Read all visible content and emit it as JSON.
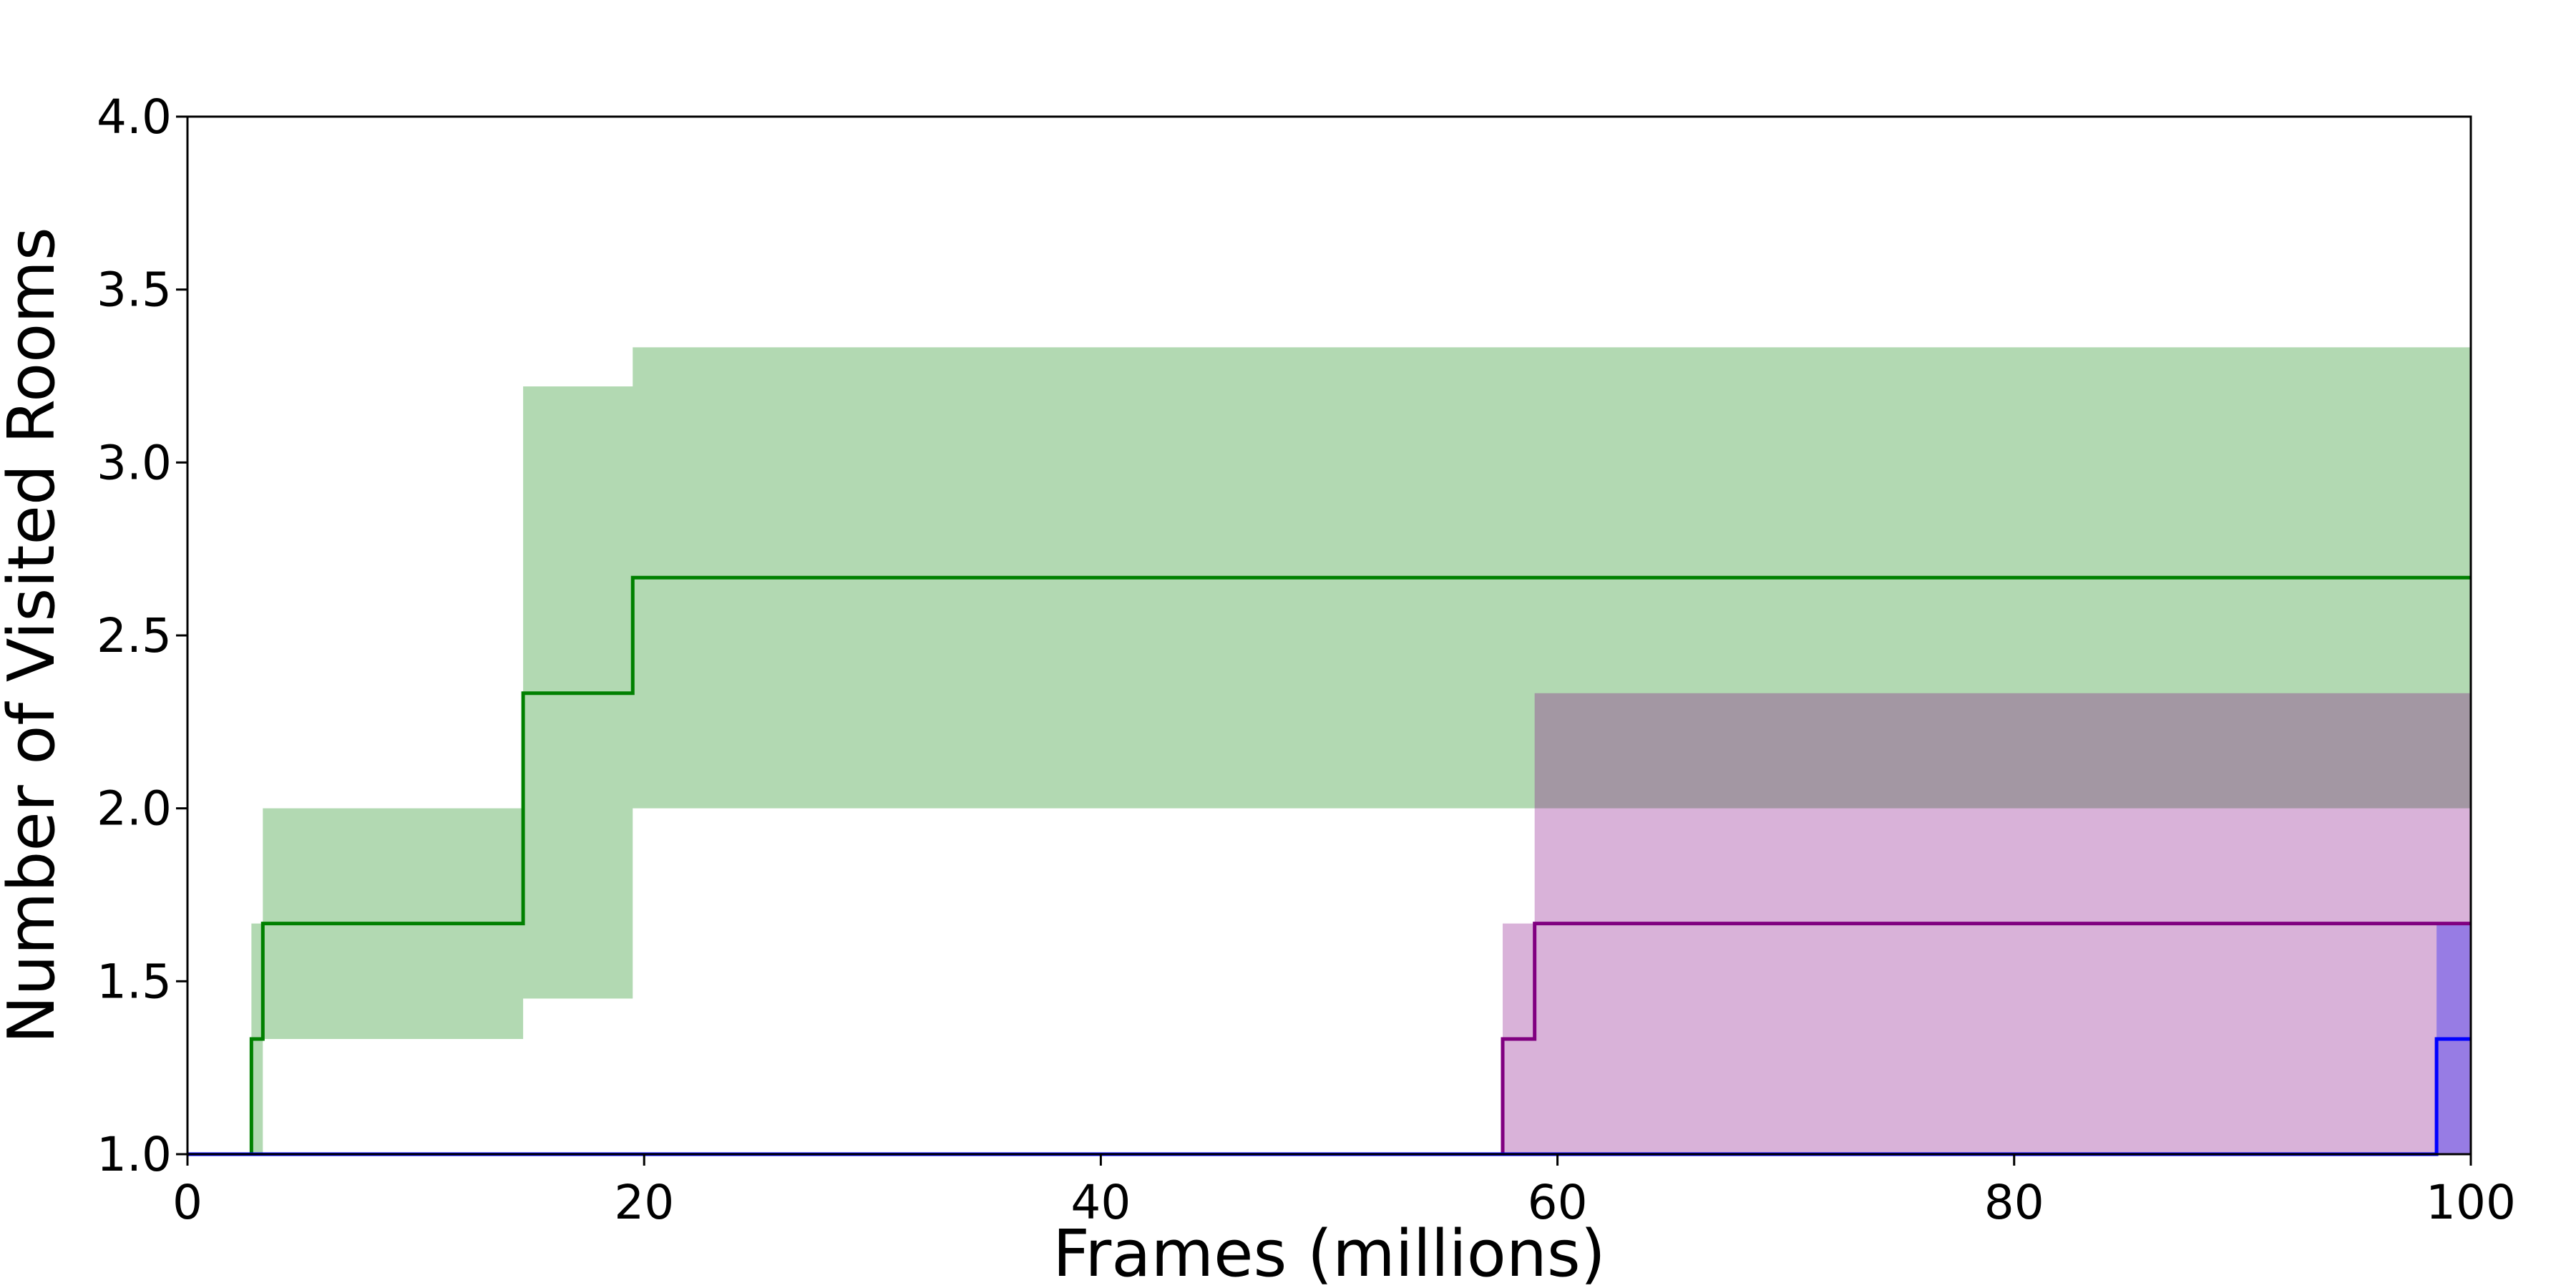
{
  "chart_data": {
    "type": "line",
    "title": "",
    "xlabel": "Frames (millions)",
    "ylabel": "Number of Visited Rooms",
    "xlim": [
      0,
      100
    ],
    "ylim": [
      1.0,
      4.0
    ],
    "xticks": [
      0,
      20,
      40,
      60,
      80,
      100
    ],
    "yticks": [
      1.0,
      1.5,
      2.0,
      2.5,
      3.0,
      3.5,
      4.0
    ],
    "grid": false,
    "legend": "none",
    "series": [
      {
        "color": "#008000",
        "fill_color": "#008000",
        "fill_opacity": 0.3,
        "x": [
          0,
          2.8,
          3.3,
          14.7,
          19.5,
          100
        ],
        "y": [
          1.0,
          1.333,
          1.667,
          2.333,
          2.667,
          2.667
        ],
        "lower": [
          1.0,
          1.0,
          1.333,
          1.45,
          2.0,
          2.0
        ],
        "upper": [
          1.0,
          1.667,
          2.0,
          3.22,
          3.333,
          3.333
        ]
      },
      {
        "color": "#800080",
        "fill_color": "#800080",
        "fill_opacity": 0.3,
        "x": [
          0,
          57.6,
          59.0,
          100
        ],
        "y": [
          1.0,
          1.333,
          1.667,
          1.667
        ],
        "lower": [
          1.0,
          1.0,
          1.0,
          1.0
        ],
        "upper": [
          1.0,
          1.667,
          2.333,
          2.333
        ]
      },
      {
        "color": "#0000ff",
        "fill_color": "#0000ff",
        "fill_opacity": 0.3,
        "x": [
          0,
          98.5,
          100
        ],
        "y": [
          1.0,
          1.333,
          1.333
        ],
        "lower": [
          1.0,
          1.0,
          1.0
        ],
        "upper": [
          1.0,
          1.667,
          1.667
        ]
      }
    ]
  }
}
